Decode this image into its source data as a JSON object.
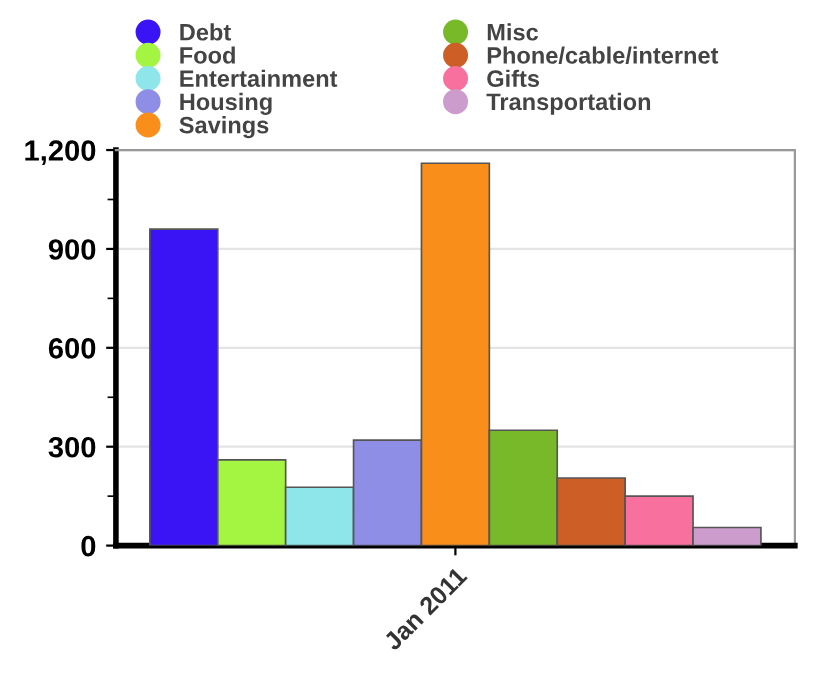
{
  "chart_data": {
    "type": "bar",
    "categories": [
      "Jan 2011"
    ],
    "series": [
      {
        "name": "Debt",
        "color": "#3a14f5",
        "values": [
          960
        ]
      },
      {
        "name": "Food",
        "color": "#a3f542",
        "values": [
          260
        ]
      },
      {
        "name": "Entertainment",
        "color": "#8ee6ea",
        "values": [
          177
        ]
      },
      {
        "name": "Housing",
        "color": "#8e8ee6",
        "values": [
          320
        ]
      },
      {
        "name": "Savings",
        "color": "#f98f1a",
        "values": [
          1160
        ]
      },
      {
        "name": "Misc",
        "color": "#78b92a",
        "values": [
          350
        ]
      },
      {
        "name": "Phone/cable/internet",
        "color": "#cc5e26",
        "values": [
          205
        ]
      },
      {
        "name": "Gifts",
        "color": "#f7709e",
        "values": [
          150
        ]
      },
      {
        "name": "Transportation",
        "color": "#cc9ccc",
        "values": [
          55
        ]
      }
    ],
    "ylim": [
      0,
      1200
    ],
    "yticks": [
      0,
      300,
      600,
      900,
      {
        "value": 1200,
        "label": "1,200"
      }
    ],
    "grid": "y",
    "legend": "top",
    "marker": "circle"
  }
}
